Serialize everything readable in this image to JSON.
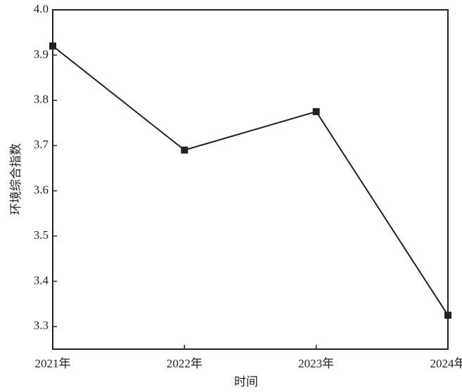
{
  "chart_data": {
    "type": "line",
    "x_label": "时间",
    "y_label": "环境综合指数",
    "categories": [
      "2021年",
      "2022年",
      "2023年",
      "2024年"
    ],
    "series": [
      {
        "color": "#222222",
        "values": [
          3.92,
          3.69,
          3.775,
          3.325
        ]
      }
    ],
    "ylim": [
      3.25,
      4.0
    ],
    "yticks": [
      3.3,
      3.4,
      3.5,
      3.6,
      3.7,
      3.8,
      3.9,
      {
        "value": 4.0,
        "label": "4.0"
      }
    ]
  }
}
